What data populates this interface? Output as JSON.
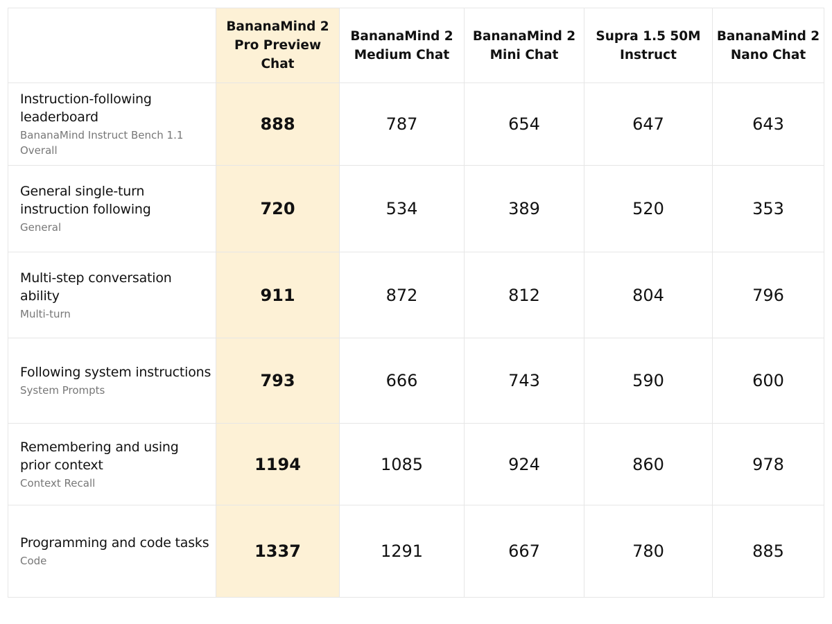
{
  "chart_data": {
    "type": "table",
    "title": "",
    "columns": [
      "BananaMind 2\nPro Preview Chat",
      "BananaMind 2\nMedium Chat",
      "BananaMind 2\nMini Chat",
      "Supra 1.5 50M\nInstruct",
      "BananaMind 2\nNano Chat"
    ],
    "rows": [
      {
        "label": "Instruction-following leaderboard",
        "sublabel": "BananaMind Instruct Bench 1.1 Overall",
        "values": [
          888,
          787,
          654,
          647,
          643
        ]
      },
      {
        "label": "General single-turn\ninstruction following",
        "sublabel": "General",
        "values": [
          720,
          534,
          389,
          520,
          353
        ]
      },
      {
        "label": "Multi-step conversation ability",
        "sublabel": "Multi-turn",
        "values": [
          911,
          872,
          812,
          804,
          796
        ]
      },
      {
        "label": "Following system instructions",
        "sublabel": "System Prompts",
        "values": [
          793,
          666,
          743,
          590,
          600
        ]
      },
      {
        "label": "Remembering and using\nprior context",
        "sublabel": "Context Recall",
        "values": [
          1194,
          1085,
          924,
          860,
          978
        ]
      },
      {
        "label": "Programming and code tasks",
        "sublabel": "Code",
        "values": [
          1337,
          1291,
          667,
          780,
          885
        ]
      }
    ],
    "highlight_column": 0,
    "colors": {
      "highlight": "#fdf1d6",
      "grid": "#e6e6e6",
      "text": "#111111",
      "subtext": "#777777"
    }
  }
}
